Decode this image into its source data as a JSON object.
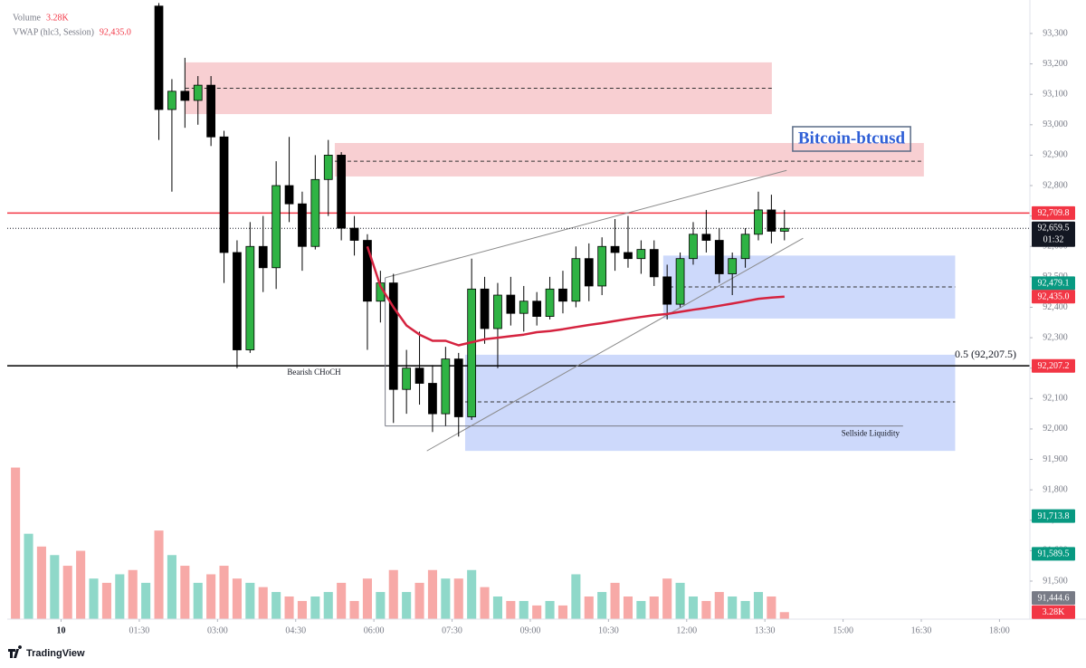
{
  "chart_data": {
    "type": "candlestick",
    "x": [
      "23:00",
      "23:15",
      "23:30",
      "23:45",
      "00:00",
      "00:15",
      "00:30",
      "00:45",
      "01:00",
      "01:15",
      "01:30",
      "01:45",
      "02:00",
      "02:15",
      "02:30",
      "02:45",
      "03:00",
      "03:15",
      "03:30",
      "03:45",
      "04:00",
      "04:15",
      "04:30",
      "04:45",
      "05:00",
      "05:15",
      "05:30",
      "05:45",
      "06:00",
      "06:15",
      "06:30",
      "06:45",
      "07:00",
      "07:15",
      "07:30",
      "07:45",
      "08:00",
      "08:15",
      "08:30",
      "08:45",
      "09:00",
      "09:15",
      "09:30",
      "09:45",
      "10:00",
      "10:15",
      "10:30",
      "10:45",
      "11:00",
      "11:15",
      "11:30",
      "11:45",
      "12:00",
      "12:15",
      "12:30",
      "12:45",
      "13:00",
      "13:15",
      "13:30",
      "13:45"
    ],
    "open": [
      null,
      null,
      null,
      null,
      null,
      null,
      null,
      null,
      null,
      null,
      null,
      93390,
      93050,
      93110,
      93080,
      93130,
      92960,
      92580,
      92260,
      92600,
      92530,
      92800,
      92740,
      92600,
      92820,
      92900,
      92660,
      92620,
      92420,
      92480,
      92130,
      92200,
      92150,
      92050,
      92230,
      92040,
      92460,
      92330,
      92440,
      92380,
      92420,
      92370,
      92460,
      92420,
      92560,
      92470,
      92600,
      92580,
      92560,
      92590,
      92500,
      92410,
      92560,
      92640,
      92620,
      92510,
      92560,
      92640,
      92720,
      92650
    ],
    "high": [
      null,
      null,
      null,
      null,
      null,
      null,
      null,
      null,
      null,
      null,
      null,
      93400,
      93150,
      93220,
      93160,
      93160,
      92980,
      92620,
      92680,
      92700,
      92880,
      92960,
      92780,
      92900,
      92950,
      92910,
      92700,
      92640,
      92520,
      92510,
      92260,
      92320,
      92210,
      92270,
      92250,
      92560,
      92500,
      92480,
      92500,
      92470,
      92450,
      92500,
      92520,
      92600,
      92610,
      92630,
      92690,
      92700,
      92620,
      92620,
      92540,
      92580,
      92680,
      92720,
      92660,
      92580,
      92660,
      92780,
      92770,
      92720
    ],
    "low": [
      null,
      null,
      null,
      null,
      null,
      null,
      null,
      null,
      null,
      null,
      null,
      92950,
      92780,
      92990,
      93000,
      92930,
      92480,
      92200,
      92250,
      92450,
      92460,
      92680,
      92520,
      92590,
      92700,
      92620,
      92570,
      92260,
      92350,
      92020,
      92050,
      92080,
      91990,
      92010,
      91975,
      92030,
      92280,
      92200,
      92340,
      92320,
      92340,
      92360,
      92380,
      92400,
      92420,
      92440,
      92520,
      92530,
      92510,
      92470,
      92360,
      92400,
      92540,
      92580,
      92480,
      92440,
      92530,
      92620,
      92610,
      92620
    ],
    "close": [
      null,
      null,
      null,
      null,
      null,
      null,
      null,
      null,
      null,
      null,
      null,
      93050,
      93110,
      93080,
      93130,
      92960,
      92580,
      92260,
      92600,
      92530,
      92800,
      92740,
      92600,
      92820,
      92900,
      92660,
      92620,
      92420,
      92480,
      92130,
      92200,
      92150,
      92050,
      92230,
      92040,
      92460,
      92330,
      92440,
      92380,
      92420,
      92370,
      92460,
      92420,
      92560,
      92470,
      92600,
      92580,
      92560,
      92590,
      92500,
      92410,
      92560,
      92640,
      92620,
      92510,
      92560,
      92640,
      92720,
      92650,
      92659.5
    ],
    "up_color": "#2fb344",
    "down_color": "#000000",
    "volume": {
      "name": "Volume",
      "last_label": "3.28K",
      "ylim": [
        0,
        120000
      ],
      "values": [
        71000,
        40000,
        34000,
        30000,
        25000,
        32000,
        19000,
        17000,
        21000,
        23000,
        17000,
        41500,
        30000,
        25000,
        17000,
        21000,
        25000,
        19000,
        17000,
        15000,
        12700,
        10600,
        8500,
        10600,
        12700,
        17000,
        8500,
        19000,
        12700,
        23000,
        12700,
        17000,
        23000,
        19000,
        19000,
        23000,
        15000,
        10600,
        8500,
        8500,
        6400,
        8500,
        6400,
        21000,
        10600,
        12700,
        17000,
        10600,
        8500,
        10600,
        19000,
        17000,
        10600,
        8500,
        12700,
        10600,
        8500,
        12700,
        10600,
        3280
      ],
      "colors": [
        "#f7a9a7",
        "#8fd8c9",
        "#f7a9a7",
        "#8fd8c9",
        "#f7a9a7",
        "#f7a9a7",
        "#8fd8c9",
        "#f7a9a7",
        "#8fd8c9",
        "#f7a9a7",
        "#8fd8c9",
        "#f7a9a7",
        "#8fd8c9",
        "#f7a9a7",
        "#8fd8c9",
        "#f7a9a7",
        "#f7a9a7",
        "#f7a9a7",
        "#8fd8c9",
        "#f7a9a7",
        "#8fd8c9",
        "#f7a9a7",
        "#f7a9a7",
        "#8fd8c9",
        "#8fd8c9",
        "#f7a9a7",
        "#f7a9a7",
        "#f7a9a7",
        "#8fd8c9",
        "#f7a9a7",
        "#8fd8c9",
        "#f7a9a7",
        "#f7a9a7",
        "#8fd8c9",
        "#f7a9a7",
        "#8fd8c9",
        "#f7a9a7",
        "#8fd8c9",
        "#f7a9a7",
        "#8fd8c9",
        "#f7a9a7",
        "#8fd8c9",
        "#f7a9a7",
        "#8fd8c9",
        "#f7a9a7",
        "#8fd8c9",
        "#f7a9a7",
        "#f7a9a7",
        "#8fd8c9",
        "#f7a9a7",
        "#f7a9a7",
        "#8fd8c9",
        "#8fd8c9",
        "#f7a9a7",
        "#f7a9a7",
        "#8fd8c9",
        "#8fd8c9",
        "#8fd8c9",
        "#f7a9a7",
        "#f7a9a7"
      ]
    },
    "vwap": {
      "name": "VWAP (hlc3, Session)",
      "last_label": "92,435.0",
      "color": "#d5233f",
      "values": [
        null,
        null,
        null,
        null,
        null,
        null,
        null,
        null,
        null,
        null,
        null,
        null,
        null,
        null,
        null,
        null,
        null,
        null,
        null,
        null,
        null,
        null,
        null,
        null,
        null,
        null,
        null,
        92600,
        92470,
        92400,
        92340,
        92310,
        92290,
        92290,
        92275,
        92285,
        92295,
        92300,
        92305,
        92310,
        92318,
        92322,
        92328,
        92335,
        92342,
        92348,
        92355,
        92362,
        92368,
        92374,
        92378,
        92385,
        92392,
        92398,
        92405,
        92412,
        92420,
        92428,
        92432,
        92435
      ]
    },
    "ylim": [
      91375,
      93410
    ],
    "yticks": [
      {
        "value": 91500,
        "label": "91,500"
      },
      {
        "value": 91600,
        "label": "91,600"
      },
      {
        "value": 91700,
        "label": "91,700"
      },
      {
        "value": 91800,
        "label": "91,800"
      },
      {
        "value": 91900,
        "label": "91,900"
      },
      {
        "value": 92000,
        "label": "92,000"
      },
      {
        "value": 92100,
        "label": "92,100"
      },
      {
        "value": 92200,
        "label": "92,200"
      },
      {
        "value": 92300,
        "label": "92,300"
      },
      {
        "value": 92400,
        "label": "92,400"
      },
      {
        "value": 92500,
        "label": "92,500"
      },
      {
        "value": 92600,
        "label": "92,600"
      },
      {
        "value": 92700,
        "label": "92,700"
      },
      {
        "value": 92800,
        "label": "92,800"
      },
      {
        "value": 92900,
        "label": "92,900"
      },
      {
        "value": 93000,
        "label": "93,000"
      },
      {
        "value": 93100,
        "label": "93,100"
      },
      {
        "value": 93200,
        "label": "93,200"
      },
      {
        "value": 93300,
        "label": "93,300"
      }
    ],
    "xlim": [
      "22:58",
      "18:35"
    ],
    "xticks": [
      {
        "value": "00:00",
        "label": "10"
      },
      "01:30",
      "03:00",
      "04:30",
      "06:00",
      "07:30",
      "09:00",
      "10:30",
      "12:00",
      "13:30",
      "15:00",
      "16:30",
      "18:00"
    ],
    "zones": [
      {
        "top": 93205,
        "bottom": 93035,
        "mid": 93120,
        "start": "02:23",
        "end": "13:38",
        "color": "#f8cfd2"
      },
      {
        "top": 92940,
        "bottom": 92830,
        "mid": 92880,
        "start": "05:15",
        "end": "16:33",
        "color": "#f8cfd2"
      },
      {
        "top": 92570,
        "bottom": 92363,
        "mid": 92467,
        "start": "11:33",
        "end": "17:09",
        "color": "#cdd9fb"
      },
      {
        "top": 92244,
        "bottom": 91928,
        "mid": 92089,
        "start": "07:45",
        "end": "17:09",
        "color": "#cdd9fb"
      }
    ],
    "hlines": [
      {
        "value": 92709.8,
        "color": "#f23645"
      },
      {
        "value": 92207.5,
        "color": "#000000",
        "label": "0.5 (92,207.5)",
        "note": "Bearish CHoCH"
      }
    ],
    "trendlines": [
      {
        "start": "06:13",
        "start_value": 92497,
        "end": "13:55",
        "end_value": 92850,
        "color": "#8a8a8a"
      },
      {
        "start": "07:01",
        "start_value": 91928,
        "end": "14:14",
        "end_value": 92627,
        "color": "#8a8a8a"
      }
    ],
    "liquidity": {
      "label": "Sellside Liquidity",
      "start": "06:13",
      "end": "16:09",
      "value": 92010,
      "top": 92497,
      "color": "#787b86"
    },
    "last_price": {
      "value": 92659.5,
      "label": "92,659.5",
      "countdown": "01:32"
    },
    "badges": [
      {
        "value": 92709.8,
        "label": "92,709.8",
        "color": "#f23645"
      },
      {
        "value": 92479.1,
        "label": "92,479.1",
        "color": "#089981"
      },
      {
        "value": 92435.0,
        "label": "92,435.0",
        "color": "#f23645"
      },
      {
        "value": 92207.2,
        "label": "92,207.2",
        "color": "#f23645"
      },
      {
        "value": 91713.8,
        "label": "91,713.8",
        "color": "#089981"
      },
      {
        "value": 91589.5,
        "label": "91,589.5",
        "color": "#089981"
      },
      {
        "value": 91444.6,
        "label": "91,444.6",
        "color": "#787b86"
      },
      {
        "value": 3280,
        "label": "3.28K",
        "color": "#f23645",
        "scale": "volume"
      }
    ],
    "title_box": "Bitcoin-btcusd",
    "watermark": "TradingView"
  }
}
